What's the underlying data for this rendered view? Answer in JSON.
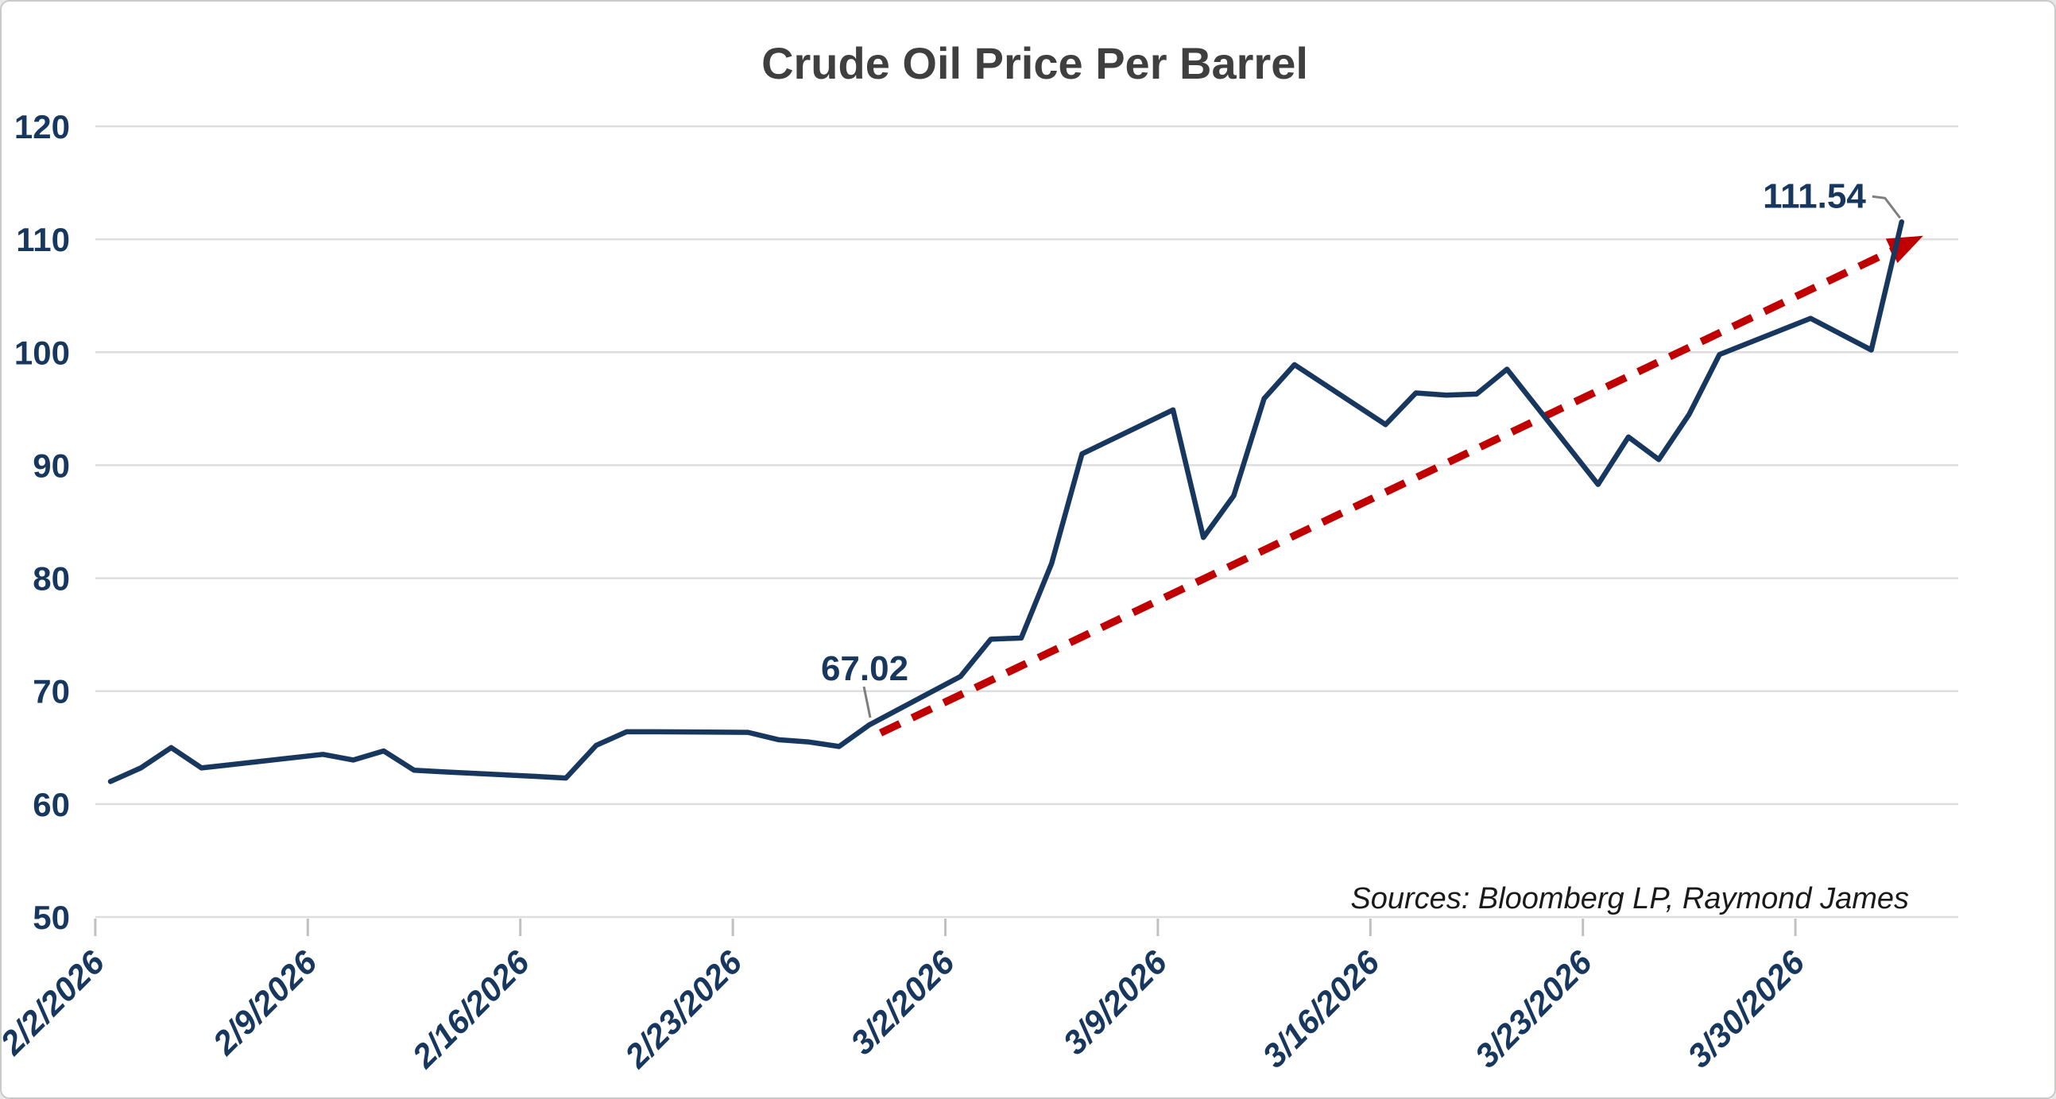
{
  "page": {
    "background": "#ffffff",
    "border_color": "#c9cbc9"
  },
  "colors": {
    "series_line": "#17375e",
    "trend_line": "#c00000",
    "gridline": "#dedede",
    "tick_mark": "#c0c0c0",
    "axis_text": "#17375e",
    "title_text": "#3f3f3f",
    "source_text": "#1a1a1a",
    "leader_line": "#7f7f7f"
  },
  "chart_data": {
    "type": "line",
    "title": "Crude Oil Price Per Barrel",
    "source_note": "Sources: Bloomberg LP, Raymond James",
    "xlabel": "",
    "ylabel": "",
    "ylim": [
      50,
      120
    ],
    "y_ticks": [
      120,
      110,
      100,
      90,
      80,
      70,
      60,
      50
    ],
    "x_tick_labels": [
      "2/2/2026",
      "2/9/2026",
      "2/16/2026",
      "2/23/2026",
      "3/2/2026",
      "3/9/2026",
      "3/16/2026",
      "3/23/2026",
      "3/30/2026"
    ],
    "grid": "horizontal",
    "legend": "none",
    "series": [
      {
        "name": "crude-oil-price",
        "color": "#17375e",
        "points": [
          {
            "date": "2/2/2026",
            "value": 62.0
          },
          {
            "date": "2/3/2026",
            "value": 63.2
          },
          {
            "date": "2/4/2026",
            "value": 65.0
          },
          {
            "date": "2/5/2026",
            "value": 63.2
          },
          {
            "date": "2/6/2026",
            "value": 63.5
          },
          {
            "date": "2/9/2026",
            "value": 64.4
          },
          {
            "date": "2/10/2026",
            "value": 63.9
          },
          {
            "date": "2/11/2026",
            "value": 64.7
          },
          {
            "date": "2/12/2026",
            "value": 63.0
          },
          {
            "date": "2/13/2026",
            "value": 62.85
          },
          {
            "date": "2/16/2026",
            "value": 62.45
          },
          {
            "date": "2/17/2026",
            "value": 62.3
          },
          {
            "date": "2/18/2026",
            "value": 65.2
          },
          {
            "date": "2/19/2026",
            "value": 66.4
          },
          {
            "date": "2/20/2026",
            "value": 66.4
          },
          {
            "date": "2/23/2026",
            "value": 66.35
          },
          {
            "date": "2/24/2026",
            "value": 65.7
          },
          {
            "date": "2/25/2026",
            "value": 65.5
          },
          {
            "date": "2/26/2026",
            "value": 65.1
          },
          {
            "date": "2/27/2026",
            "value": 67.02
          },
          {
            "date": "3/2/2026",
            "value": 71.3
          },
          {
            "date": "3/3/2026",
            "value": 74.6
          },
          {
            "date": "3/4/2026",
            "value": 74.7
          },
          {
            "date": "3/5/2026",
            "value": 81.3
          },
          {
            "date": "3/6/2026",
            "value": 91.0
          },
          {
            "date": "3/9/2026",
            "value": 94.9
          },
          {
            "date": "3/10/2026",
            "value": 83.6
          },
          {
            "date": "3/11/2026",
            "value": 87.3
          },
          {
            "date": "3/12/2026",
            "value": 95.9
          },
          {
            "date": "3/13/2026",
            "value": 98.9
          },
          {
            "date": "3/16/2026",
            "value": 93.6
          },
          {
            "date": "3/17/2026",
            "value": 96.4
          },
          {
            "date": "3/18/2026",
            "value": 96.2
          },
          {
            "date": "3/19/2026",
            "value": 96.3
          },
          {
            "date": "3/20/2026",
            "value": 98.5
          },
          {
            "date": "3/23/2026",
            "value": 88.3
          },
          {
            "date": "3/24/2026",
            "value": 92.5
          },
          {
            "date": "3/25/2026",
            "value": 90.5
          },
          {
            "date": "3/26/2026",
            "value": 94.5
          },
          {
            "date": "3/27/2026",
            "value": 99.8
          },
          {
            "date": "3/30/2026",
            "value": 103.0
          },
          {
            "date": "3/31/2026",
            "value": 101.6
          },
          {
            "date": "4/1/2026",
            "value": 100.2
          },
          {
            "date": "4/2/2026",
            "value": 111.54
          }
        ]
      }
    ],
    "trendline": {
      "style": "dashed",
      "arrow": true,
      "color": "#c00000",
      "start": {
        "date": "2/27/2026",
        "value": 66.3
      },
      "end": {
        "date": "4/2/2026",
        "value": 109.4
      }
    },
    "annotations": [
      {
        "label": "67.02",
        "date": "2/27/2026",
        "value": 67.02
      },
      {
        "label": "111.54",
        "date": "4/2/2026",
        "value": 111.54
      }
    ]
  }
}
